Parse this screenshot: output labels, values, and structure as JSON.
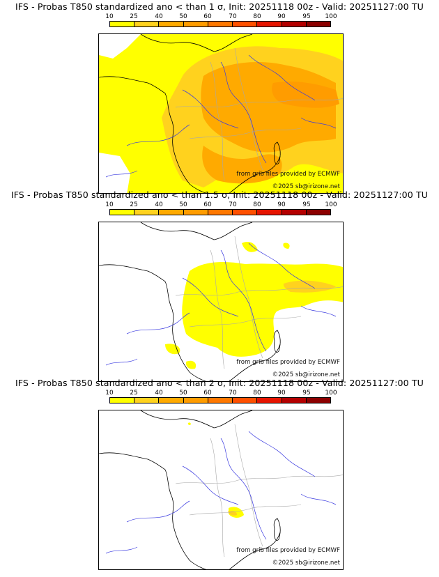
{
  "panels": [
    {
      "title": "IFS - Probas T850  standardized ano < than 1 σ, Init: 20251118 00z - Valid: 20251127:00 TU",
      "sigma": "1",
      "source_text": "from grib files provided by ECMWF",
      "copyright_text": "©2025 sb@irizone.net"
    },
    {
      "title": "IFS - Probas T850  standardized ano < than 1.5 σ, Init: 20251118 00z - Valid: 20251127:00 TU",
      "sigma": "1.5",
      "source_text": "from grib files provided by ECMWF",
      "copyright_text": "©2025 sb@irizone.net"
    },
    {
      "title": "IFS - Probas T850  standardized ano < than 2 σ, Init: 20251118 00z - Valid: 20251127:00 TU",
      "sigma": "2",
      "source_text": "from grib files provided by ECMWF",
      "copyright_text": "©2025 sb@irizone.net"
    }
  ],
  "scale": {
    "labels": [
      "10",
      "25",
      "40",
      "50",
      "60",
      "70",
      "80",
      "90",
      "95",
      "100"
    ],
    "colors": [
      "#ffff00",
      "#ffd21e",
      "#ffaa00",
      "#ff9c00",
      "#ff7800",
      "#ff5000",
      "#e61400",
      "#b40000",
      "#8c0000",
      "#5a0000"
    ]
  },
  "colors": {
    "coast": "#000000",
    "rivers": "#3a3ae0",
    "borders": "#a8a8a8",
    "prob_low": "#ffff00",
    "prob_mid": "#ffd21e",
    "prob_high": "#ffaa00",
    "prob_higher": "#ff9c00"
  }
}
